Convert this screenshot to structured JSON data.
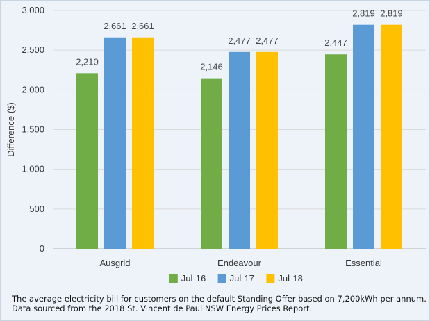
{
  "colors": {
    "background": "#eef3f9",
    "gridline": "#d9d9d9",
    "axis": "#b0b0b0"
  },
  "chart_data": {
    "type": "bar",
    "title": "",
    "xlabel": "",
    "ylabel": "Difference ($)",
    "ylim": [
      0,
      3000
    ],
    "yticks": [
      0,
      500,
      1000,
      1500,
      2000,
      2500,
      3000
    ],
    "ytick_labels": [
      "0",
      "500",
      "1,000",
      "1,500",
      "2,000",
      "2,500",
      "3,000"
    ],
    "grid": "horizontal",
    "legend_position": "bottom-center",
    "categories": [
      "Ausgrid",
      "Endeavour",
      "Essential"
    ],
    "series": [
      {
        "name": "Jul-16",
        "color": "#70ad47",
        "values": [
          2210,
          2146,
          2447
        ],
        "labels": [
          "2,210",
          "2,146",
          "2,447"
        ]
      },
      {
        "name": "Jul-17",
        "color": "#5b9bd5",
        "values": [
          2661,
          2477,
          2819
        ],
        "labels": [
          "2,661",
          "2,477",
          "2,819"
        ]
      },
      {
        "name": "Jul-18",
        "color": "#ffc000",
        "values": [
          2661,
          2477,
          2819
        ],
        "labels": [
          "2,661",
          "2,477",
          "2,819"
        ]
      }
    ]
  },
  "caption": {
    "line1": "The average electricity bill for customers on the default Standing Offer based on 7,200kWh per annum.",
    "line2": "Data sourced from the 2018 St. Vincent de Paul NSW Energy Prices Report."
  }
}
